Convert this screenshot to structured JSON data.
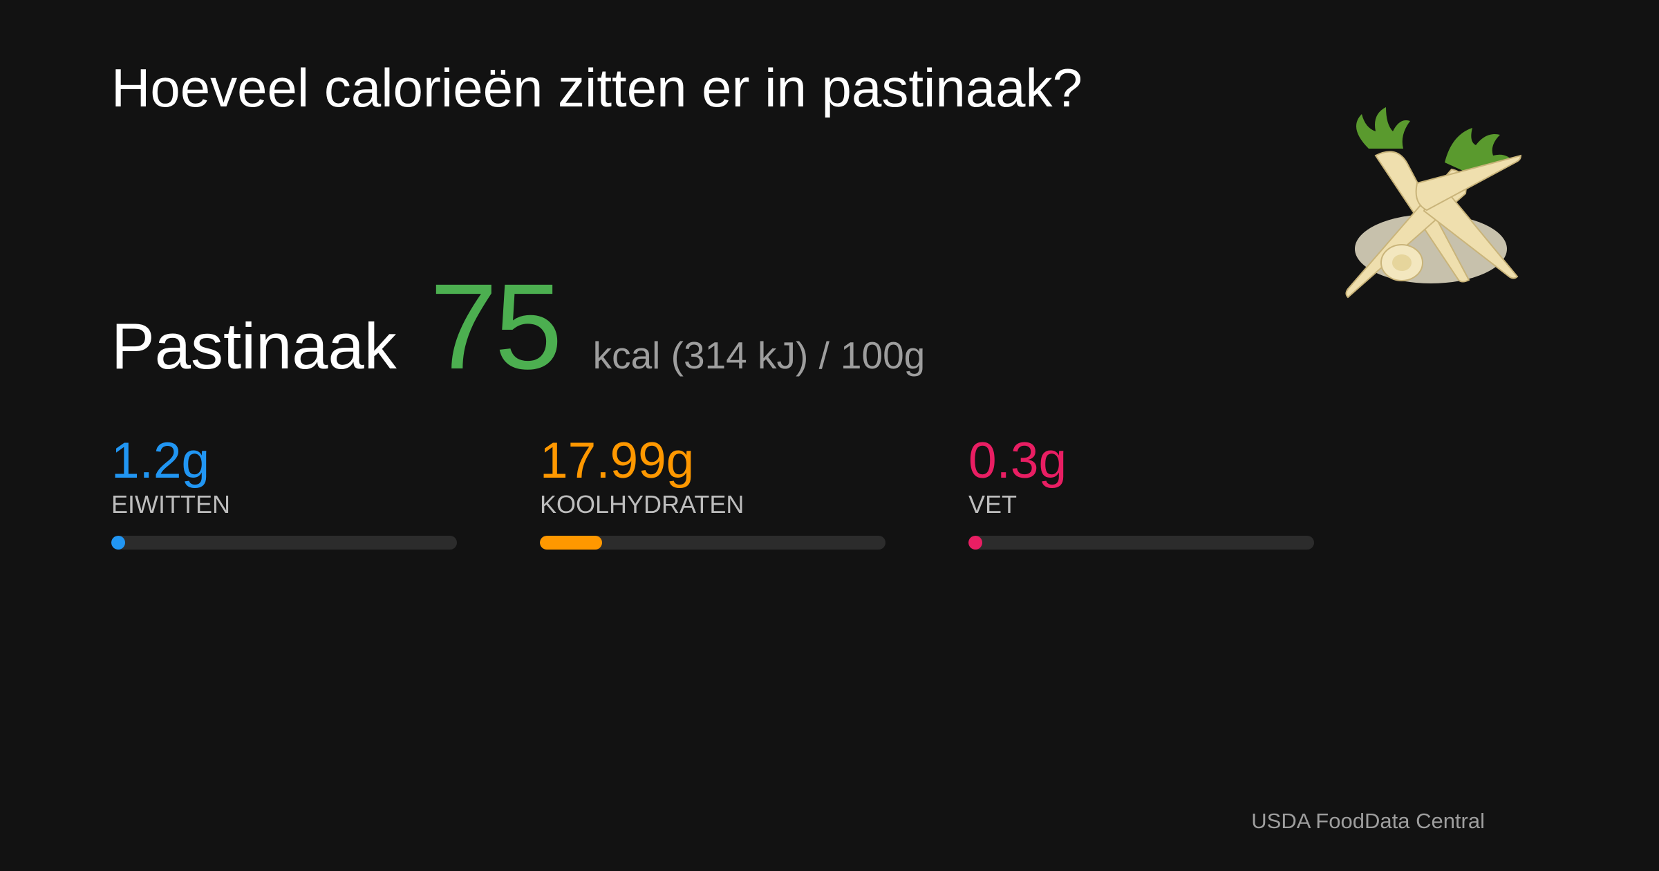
{
  "title": "Hoeveel calorieën zitten er in pastinaak?",
  "food": "Pastinaak",
  "energy": {
    "kcal": 75,
    "unit_text": "kcal (314 kJ) /",
    "serving": {
      "value": 100,
      "label": "100g"
    },
    "color": "#4caf50"
  },
  "macros": [
    {
      "value": 1.2,
      "value_label": "1.2g",
      "name": "EIWITTEN",
      "color": "#2196f3"
    },
    {
      "value": 17.99,
      "value_label": "17.99g",
      "name": "KOOLHYDRATEN",
      "color": "#ff9800"
    },
    {
      "value": 0.3,
      "value_label": "0.3g",
      "name": "VET",
      "color": "#e91e63"
    }
  ],
  "source": "USDA FoodData Central"
}
